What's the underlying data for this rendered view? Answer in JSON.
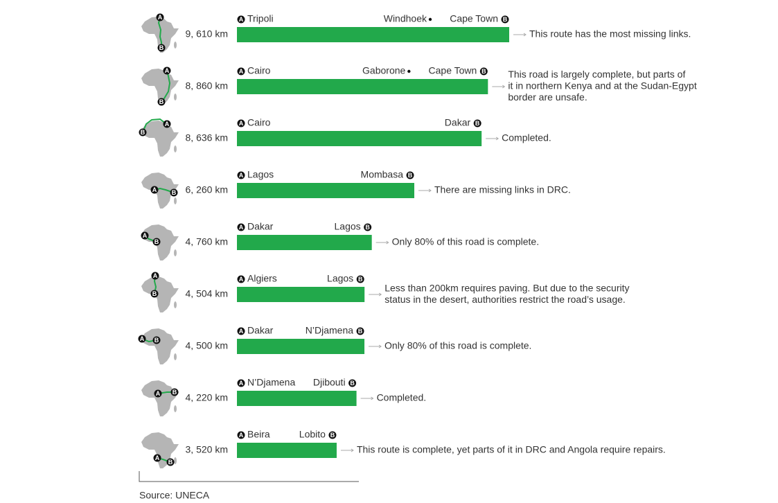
{
  "chart_data": {
    "type": "bar",
    "orientation": "horizontal",
    "color": "#22a94b",
    "start_marker": "A",
    "end_marker": "B",
    "values": [
      9610,
      8860,
      8636,
      6260,
      4760,
      4504,
      4500,
      4220,
      3520
    ],
    "value_labels": [
      "9, 610 km",
      "8, 860 km",
      "8, 636 km",
      "6, 260 km",
      "4, 760 km",
      "4, 504 km",
      "4, 500 km",
      "4, 220 km",
      "3, 520 km"
    ],
    "starts": [
      "Tripoli",
      "Cairo",
      "Cairo",
      "Lagos",
      "Dakar",
      "Algiers",
      "Dakar",
      "N’Djamena",
      "Beira"
    ],
    "ends": [
      "Cape Town",
      "Cape Town",
      "Dakar",
      "Mombasa",
      "Lagos",
      "Lagos",
      "N’Djamena",
      "Djibouti",
      "Lobito"
    ],
    "stops": [
      "Windhoek",
      "Gaborone",
      null,
      null,
      null,
      null,
      null,
      null,
      null
    ],
    "notes": [
      [
        "This route has the most missing links."
      ],
      [
        "This road is largely complete, but parts of",
        "it in northern Kenya and at the Sudan-Egypt",
        "border are unsafe."
      ],
      [
        "Completed."
      ],
      [
        "There are missing links in DRC."
      ],
      [
        "Only 80% of this road is complete."
      ],
      [
        "Less than 200km requires paving. But due to the security",
        "status in the desert, authorities restrict the road’s usage."
      ],
      [
        "Only 80% of this road is complete."
      ],
      [
        "Completed."
      ],
      [
        "This route is complete, yet parts of it in DRC and Angola require repairs."
      ]
    ],
    "source": "Source: UNECA"
  }
}
